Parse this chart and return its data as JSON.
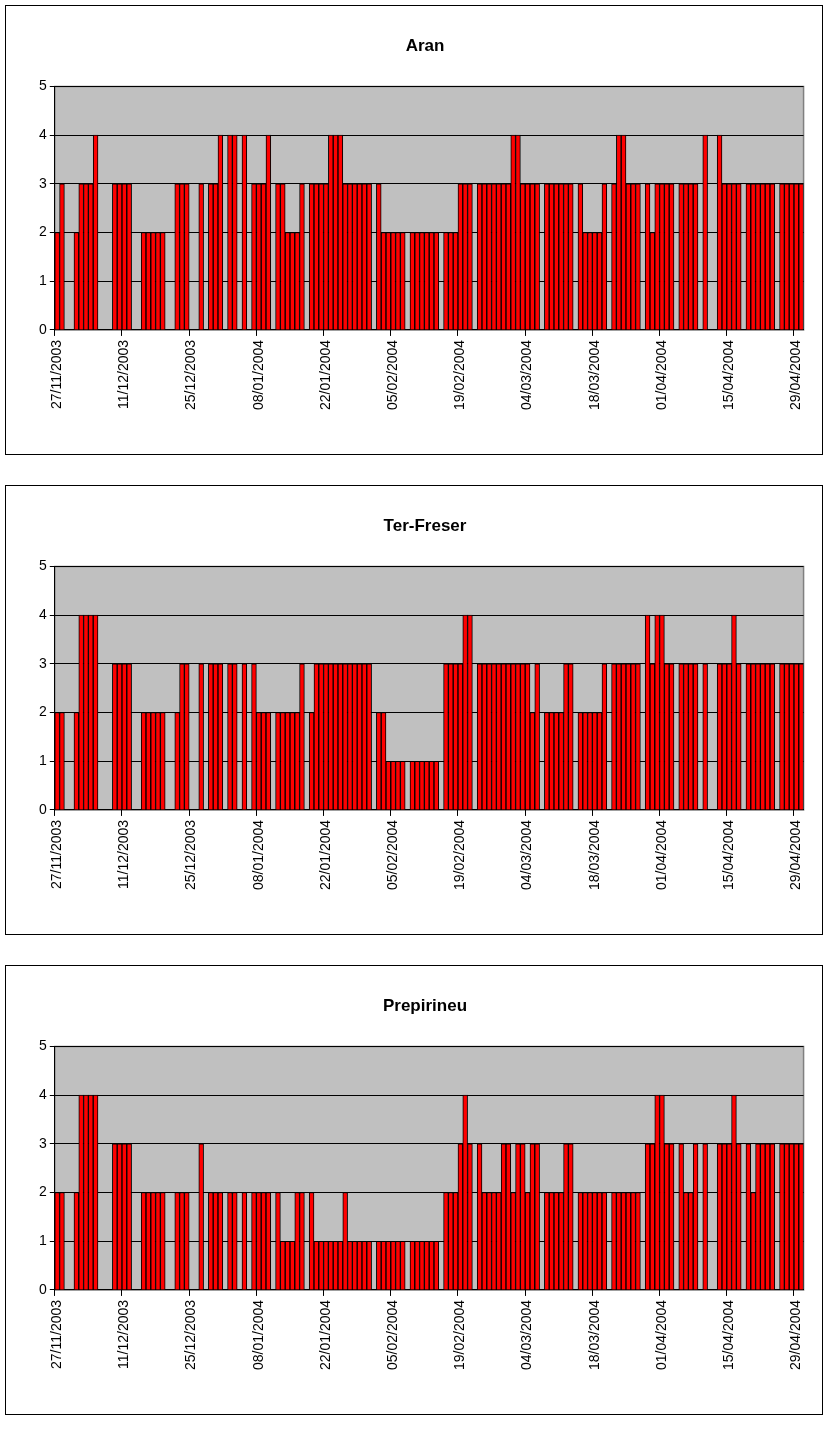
{
  "chart_data": [
    {
      "type": "bar",
      "title": "Aran",
      "categories": [
        "27/11/2003",
        null,
        null,
        null,
        null,
        null,
        null,
        null,
        null,
        null,
        null,
        null,
        null,
        null,
        "11/12/2003",
        null,
        null,
        null,
        null,
        null,
        null,
        null,
        null,
        null,
        null,
        null,
        null,
        null,
        "25/12/2003",
        null,
        null,
        null,
        null,
        null,
        null,
        null,
        null,
        null,
        null,
        null,
        null,
        null,
        "08/01/2004",
        null,
        null,
        null,
        null,
        null,
        null,
        null,
        null,
        null,
        null,
        null,
        null,
        null,
        "22/01/2004",
        null,
        null,
        null,
        null,
        null,
        null,
        null,
        null,
        null,
        null,
        null,
        null,
        null,
        "05/02/2004",
        null,
        null,
        null,
        null,
        null,
        null,
        null,
        null,
        null,
        null,
        null,
        null,
        null,
        "19/02/2004",
        null,
        null,
        null,
        null,
        null,
        null,
        null,
        null,
        null,
        null,
        null,
        null,
        null,
        "04/03/2004",
        null,
        null,
        null,
        null,
        null,
        null,
        null,
        null,
        null,
        null,
        null,
        null,
        null,
        "18/03/2004",
        null,
        null,
        null,
        null,
        null,
        null,
        null,
        null,
        null,
        null,
        null,
        null,
        null,
        "01/04/2004",
        null,
        null,
        null,
        null,
        null,
        null,
        null,
        null,
        null,
        null,
        null,
        null,
        null,
        "15/04/2004",
        null,
        null,
        null,
        null,
        null,
        null,
        null,
        null,
        null,
        null,
        null,
        null,
        null,
        "29/04/2004",
        null
      ],
      "values": [
        2,
        3,
        null,
        null,
        2,
        3,
        3,
        3,
        4,
        null,
        null,
        null,
        3,
        3,
        3,
        3,
        null,
        null,
        2,
        2,
        2,
        2,
        2,
        null,
        null,
        3,
        3,
        3,
        null,
        null,
        3,
        null,
        3,
        3,
        4,
        null,
        4,
        4,
        null,
        4,
        null,
        3,
        3,
        3,
        4,
        null,
        3,
        3,
        2,
        2,
        2,
        3,
        null,
        3,
        3,
        3,
        3,
        4,
        4,
        4,
        3,
        3,
        3,
        3,
        3,
        3,
        null,
        3,
        2,
        2,
        2,
        2,
        2,
        null,
        2,
        2,
        2,
        2,
        2,
        2,
        null,
        2,
        2,
        2,
        3,
        3,
        3,
        null,
        3,
        3,
        3,
        3,
        3,
        3,
        3,
        4,
        4,
        3,
        3,
        3,
        3,
        null,
        3,
        3,
        3,
        3,
        3,
        3,
        null,
        3,
        2,
        2,
        2,
        2,
        3,
        null,
        3,
        4,
        4,
        3,
        3,
        3,
        null,
        3,
        2,
        3,
        3,
        3,
        3,
        null,
        3,
        3,
        3,
        3,
        null,
        4,
        null,
        null,
        4,
        3,
        3,
        3,
        3,
        null,
        3,
        3,
        3,
        3,
        3,
        3,
        null,
        3,
        3,
        3,
        3,
        3
      ],
      "color": "#ff0000",
      "ylim": [
        0,
        5
      ],
      "yticks": [
        0,
        1,
        2,
        3,
        4,
        5
      ],
      "grid": "y"
    },
    {
      "type": "bar",
      "title": "Ter-Freser",
      "categories": [
        "27/11/2003",
        null,
        null,
        null,
        null,
        null,
        null,
        null,
        null,
        null,
        null,
        null,
        null,
        null,
        "11/12/2003",
        null,
        null,
        null,
        null,
        null,
        null,
        null,
        null,
        null,
        null,
        null,
        null,
        null,
        "25/12/2003",
        null,
        null,
        null,
        null,
        null,
        null,
        null,
        null,
        null,
        null,
        null,
        null,
        null,
        "08/01/2004",
        null,
        null,
        null,
        null,
        null,
        null,
        null,
        null,
        null,
        null,
        null,
        null,
        null,
        "22/01/2004",
        null,
        null,
        null,
        null,
        null,
        null,
        null,
        null,
        null,
        null,
        null,
        null,
        null,
        "05/02/2004",
        null,
        null,
        null,
        null,
        null,
        null,
        null,
        null,
        null,
        null,
        null,
        null,
        null,
        "19/02/2004",
        null,
        null,
        null,
        null,
        null,
        null,
        null,
        null,
        null,
        null,
        null,
        null,
        null,
        "04/03/2004",
        null,
        null,
        null,
        null,
        null,
        null,
        null,
        null,
        null,
        null,
        null,
        null,
        null,
        "18/03/2004",
        null,
        null,
        null,
        null,
        null,
        null,
        null,
        null,
        null,
        null,
        null,
        null,
        null,
        "01/04/2004",
        null,
        null,
        null,
        null,
        null,
        null,
        null,
        null,
        null,
        null,
        null,
        null,
        null,
        "15/04/2004",
        null,
        null,
        null,
        null,
        null,
        null,
        null,
        null,
        null,
        null,
        null,
        null,
        null,
        "29/04/2004",
        null
      ],
      "values": [
        2,
        2,
        null,
        null,
        2,
        4,
        4,
        4,
        4,
        null,
        null,
        null,
        3,
        3,
        3,
        3,
        null,
        null,
        2,
        2,
        2,
        2,
        2,
        null,
        null,
        2,
        3,
        3,
        null,
        null,
        3,
        null,
        3,
        3,
        3,
        null,
        3,
        3,
        null,
        3,
        null,
        3,
        2,
        2,
        2,
        null,
        2,
        2,
        2,
        2,
        2,
        3,
        null,
        2,
        3,
        3,
        3,
        3,
        3,
        3,
        3,
        3,
        3,
        3,
        3,
        3,
        null,
        2,
        2,
        1,
        1,
        1,
        1,
        null,
        1,
        1,
        1,
        1,
        1,
        1,
        null,
        3,
        3,
        3,
        3,
        4,
        4,
        null,
        3,
        3,
        3,
        3,
        3,
        3,
        3,
        3,
        3,
        3,
        3,
        2,
        3,
        null,
        2,
        2,
        2,
        2,
        3,
        3,
        null,
        2,
        2,
        2,
        2,
        2,
        3,
        null,
        3,
        3,
        3,
        3,
        3,
        3,
        null,
        4,
        3,
        4,
        4,
        3,
        3,
        null,
        3,
        3,
        3,
        3,
        null,
        3,
        null,
        null,
        3,
        3,
        3,
        4,
        3,
        null,
        3,
        3,
        3,
        3,
        3,
        3,
        null,
        3,
        3,
        3,
        3,
        3
      ],
      "color": "#ff0000",
      "ylim": [
        0,
        5
      ],
      "yticks": [
        0,
        1,
        2,
        3,
        4,
        5
      ],
      "grid": "y"
    },
    {
      "type": "bar",
      "title": "Prepirineu",
      "categories": [
        "27/11/2003",
        null,
        null,
        null,
        null,
        null,
        null,
        null,
        null,
        null,
        null,
        null,
        null,
        null,
        "11/12/2003",
        null,
        null,
        null,
        null,
        null,
        null,
        null,
        null,
        null,
        null,
        null,
        null,
        null,
        "25/12/2003",
        null,
        null,
        null,
        null,
        null,
        null,
        null,
        null,
        null,
        null,
        null,
        null,
        null,
        "08/01/2004",
        null,
        null,
        null,
        null,
        null,
        null,
        null,
        null,
        null,
        null,
        null,
        null,
        null,
        "22/01/2004",
        null,
        null,
        null,
        null,
        null,
        null,
        null,
        null,
        null,
        null,
        null,
        null,
        null,
        "05/02/2004",
        null,
        null,
        null,
        null,
        null,
        null,
        null,
        null,
        null,
        null,
        null,
        null,
        null,
        "19/02/2004",
        null,
        null,
        null,
        null,
        null,
        null,
        null,
        null,
        null,
        null,
        null,
        null,
        null,
        "04/03/2004",
        null,
        null,
        null,
        null,
        null,
        null,
        null,
        null,
        null,
        null,
        null,
        null,
        null,
        "18/03/2004",
        null,
        null,
        null,
        null,
        null,
        null,
        null,
        null,
        null,
        null,
        null,
        null,
        null,
        "01/04/2004",
        null,
        null,
        null,
        null,
        null,
        null,
        null,
        null,
        null,
        null,
        null,
        null,
        null,
        "15/04/2004",
        null,
        null,
        null,
        null,
        null,
        null,
        null,
        null,
        null,
        null,
        null,
        null,
        null,
        "29/04/2004",
        null
      ],
      "values": [
        2,
        2,
        null,
        null,
        2,
        4,
        4,
        4,
        4,
        null,
        null,
        null,
        3,
        3,
        3,
        3,
        null,
        null,
        2,
        2,
        2,
        2,
        2,
        null,
        null,
        2,
        2,
        2,
        null,
        null,
        3,
        null,
        2,
        2,
        2,
        null,
        2,
        2,
        null,
        2,
        null,
        2,
        2,
        2,
        2,
        null,
        2,
        1,
        1,
        1,
        2,
        2,
        null,
        2,
        1,
        1,
        1,
        1,
        1,
        1,
        2,
        1,
        1,
        1,
        1,
        1,
        null,
        1,
        1,
        1,
        1,
        1,
        1,
        null,
        1,
        1,
        1,
        1,
        1,
        1,
        null,
        2,
        2,
        2,
        3,
        4,
        3,
        null,
        3,
        2,
        2,
        2,
        2,
        3,
        3,
        2,
        3,
        3,
        2,
        3,
        3,
        null,
        2,
        2,
        2,
        2,
        3,
        3,
        null,
        2,
        2,
        2,
        2,
        2,
        2,
        null,
        2,
        2,
        2,
        2,
        2,
        2,
        null,
        3,
        3,
        4,
        4,
        3,
        3,
        null,
        3,
        2,
        2,
        3,
        null,
        3,
        null,
        null,
        3,
        3,
        3,
        4,
        3,
        null,
        3,
        2,
        3,
        3,
        3,
        3,
        null,
        3,
        3,
        3,
        3,
        3
      ],
      "color": "#ff0000",
      "ylim": [
        0,
        5
      ],
      "yticks": [
        0,
        1,
        2,
        3,
        4,
        5
      ],
      "grid": "y"
    }
  ]
}
